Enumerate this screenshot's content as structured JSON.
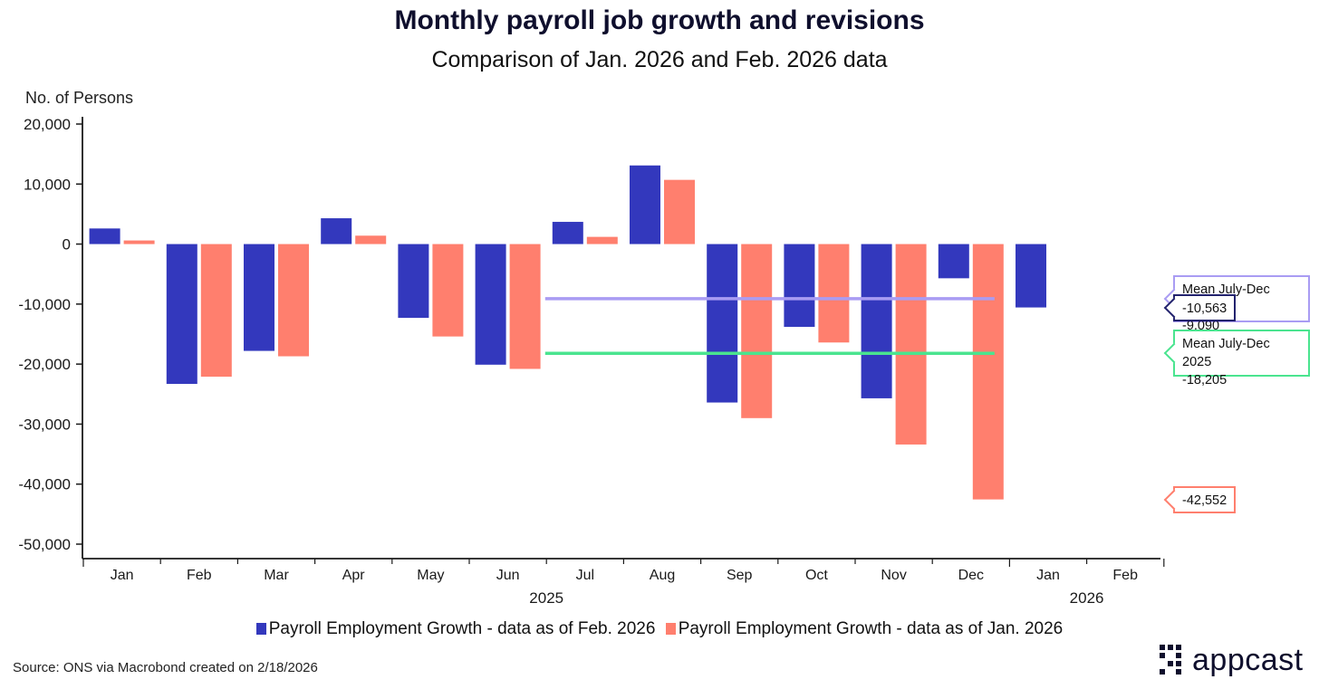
{
  "chart_data": {
    "type": "bar",
    "title": "Monthly payroll job growth and revisions",
    "subtitle": "Comparison of Jan. 2026 and Feb. 2026 data",
    "ylabel": "No. of Persons",
    "ylim": [
      -50000,
      20000
    ],
    "yticks": [
      20000,
      10000,
      0,
      -10000,
      -20000,
      -30000,
      -40000,
      -50000
    ],
    "ytick_labels": [
      "20,000",
      "10,000",
      "0",
      "-10,000",
      "-20,000",
      "-30,000",
      "-40,000",
      "-50,000"
    ],
    "categories": [
      "Jan",
      "Feb",
      "Mar",
      "Apr",
      "May",
      "Jun",
      "Jul",
      "Aug",
      "Sep",
      "Oct",
      "Nov",
      "Dec",
      "Jan",
      "Feb"
    ],
    "year_labels": [
      {
        "label": "2025",
        "start_index": 0,
        "end_index": 11
      },
      {
        "label": "2026",
        "start_index": 12,
        "end_index": 13
      }
    ],
    "series": [
      {
        "name": "Payroll Employment Growth - data as of Feb. 2026",
        "color": "#3338bd",
        "values": [
          2600,
          -23300,
          -17800,
          4300,
          -12300,
          -20100,
          3700,
          13100,
          -26400,
          -13800,
          -25700,
          -5700,
          -10563,
          null
        ]
      },
      {
        "name": "Payroll Employment Growth - data as of Jan. 2026",
        "color": "#ff7f6e",
        "values": [
          600,
          -22100,
          -18700,
          1400,
          -15400,
          -20800,
          1200,
          10700,
          -29000,
          -16400,
          -33400,
          -42552,
          null,
          null
        ]
      }
    ],
    "reference_lines": [
      {
        "label": "Mean July-Dec 2025",
        "value": -9090,
        "value_label": "-9,090",
        "color": "#a99cf3",
        "from_index": 6,
        "to_index": 11
      },
      {
        "label": "Mean July-Dec 2025",
        "value": -18205,
        "value_label": "-18,205",
        "color": "#4ae48f",
        "from_index": 6,
        "to_index": 11
      }
    ],
    "callouts": [
      {
        "lines": [
          "Mean July-Dec 2025",
          "-9,090"
        ],
        "value": -9090,
        "border": "#a99cf3"
      },
      {
        "lines": [
          "-10,563"
        ],
        "value": -10563,
        "border": "#23236e"
      },
      {
        "lines": [
          "Mean July-Dec 2025",
          "-18,205"
        ],
        "value": -18205,
        "border": "#4ae48f"
      },
      {
        "lines": [
          "-42,552"
        ],
        "value": -42552,
        "border": "#ff7f6e"
      }
    ]
  },
  "legend": {
    "feb_label": "Payroll Employment Growth - data as of Feb. 2026",
    "jan_label": "Payroll Employment Growth - data as of Jan. 2026"
  },
  "source": "Source: ONS via Macrobond created on 2/18/2026",
  "logo": {
    "text": "appcast",
    "color": "#0f0f2d"
  }
}
